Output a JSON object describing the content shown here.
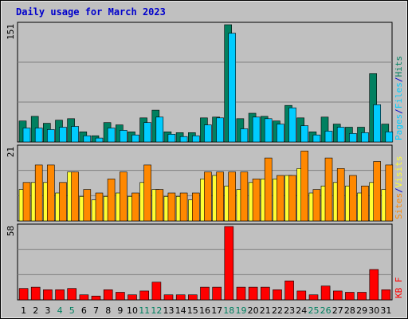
{
  "chart_data": {
    "type": "bar",
    "title": "Daily usage for March 2023",
    "categories": [
      "1",
      "2",
      "3",
      "4",
      "5",
      "6",
      "7",
      "8",
      "9",
      "10",
      "11",
      "12",
      "13",
      "14",
      "15",
      "16",
      "17",
      "18",
      "19",
      "20",
      "21",
      "22",
      "23",
      "24",
      "25",
      "26",
      "27",
      "28",
      "29",
      "30",
      "31"
    ],
    "weekend_days": [
      "4",
      "5",
      "11",
      "12",
      "18",
      "19",
      "25",
      "26"
    ],
    "panels": [
      {
        "id": "hits",
        "ymax_label": "151",
        "legend": [
          "Pages",
          "/",
          "Files",
          "/",
          "Hits"
        ],
        "series": [
          {
            "name": "Hits",
            "color": "#008060",
            "values": [
              27,
              33,
              24,
              28,
              30,
              13,
              8,
              25,
              22,
              13,
              31,
              41,
              13,
              12,
              12,
              31,
              32,
              151,
              30,
              37,
              33,
              27,
              47,
              31,
              13,
              32,
              23,
              19,
              19,
              88,
              23
            ]
          },
          {
            "name": "Files",
            "color": "#00ccff",
            "values": [
              18,
              18,
              16,
              19,
              20,
              8,
              5,
              18,
              15,
              9,
              25,
              32,
              10,
              7,
              8,
              22,
              31,
              140,
              17,
              32,
              30,
              23,
              44,
              21,
              9,
              14,
              19,
              11,
              12,
              48,
              13
            ]
          },
          {
            "name": "Pages",
            "color": "#00ccff",
            "values": []
          }
        ]
      },
      {
        "id": "visits",
        "ymax_label": "21",
        "legend": [
          "Sites",
          "/",
          "Visits"
        ],
        "series": [
          {
            "name": "Visits",
            "color": "#ffff33",
            "values": [
              9,
              11,
              11,
              8,
              14,
              7,
              6,
              7,
              8,
              7,
              11,
              9,
              7,
              7,
              6,
              12,
              13,
              10,
              9,
              11,
              12,
              12,
              13,
              15,
              8,
              10,
              11,
              10,
              8,
              11,
              9
            ]
          },
          {
            "name": "Sites",
            "color": "#ff8800",
            "values": [
              11,
              16,
              16,
              11,
              14,
              9,
              8,
              12,
              14,
              8,
              16,
              9,
              8,
              8,
              8,
              14,
              14,
              14,
              14,
              12,
              18,
              13,
              13,
              20,
              9,
              18,
              15,
              13,
              10,
              17,
              16
            ]
          }
        ]
      },
      {
        "id": "kbytes",
        "ymax_label": "58",
        "legend": [
          "KB",
          "F"
        ],
        "series": [
          {
            "name": "KB F",
            "color": "#ff0000",
            "values": [
              9,
              10,
              8,
              8,
              9,
              4,
              3,
              8,
              6,
              4,
              7,
              14,
              4,
              4,
              4,
              10,
              10,
              58,
              10,
              10,
              10,
              8,
              15,
              7,
              4,
              11,
              7,
              6,
              6,
              24,
              8
            ]
          }
        ]
      }
    ],
    "colors": {
      "background": "#c0c0c0",
      "plot_border": "#000000",
      "gridline": "#808080",
      "weekend_label": "#008060",
      "weekday_label": "#000000",
      "hits_dark": "#008060",
      "files_cyan": "#00ccff",
      "sites_orange": "#ff8800",
      "visits_yellow": "#ffff33",
      "kb_red": "#ff0000",
      "title_blue": "#0000cc",
      "slash_blue": "#0000cc"
    }
  }
}
